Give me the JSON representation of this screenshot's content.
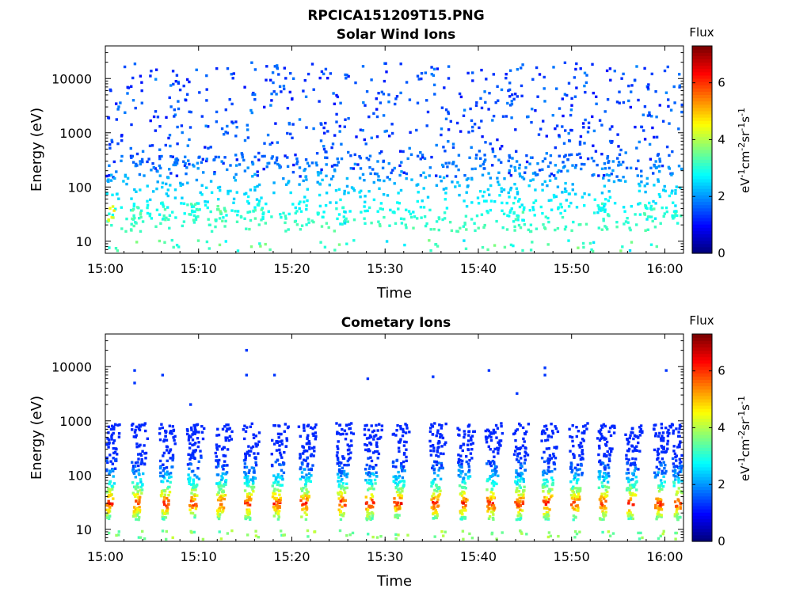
{
  "figure": {
    "title": "RPCICA151209T15.PNG"
  },
  "colors": {
    "colormap": [
      "#00007f",
      "#0000ff",
      "#007fff",
      "#00ffff",
      "#7fff7f",
      "#ffff00",
      "#ff7f00",
      "#ff0000",
      "#7f0000"
    ]
  },
  "chart_data": [
    {
      "type": "heatmap",
      "title": "Solar Wind Ions",
      "xlabel": "Time",
      "ylabel": "Energy (eV)",
      "x_range": [
        "15:00",
        "16:02"
      ],
      "x_ticks": [
        "15:00",
        "15:10",
        "15:20",
        "15:30",
        "15:40",
        "15:50",
        "16:00"
      ],
      "y_scale": "log",
      "y_range": [
        6,
        40000
      ],
      "y_ticks": [
        10,
        100,
        1000,
        10000
      ],
      "y_tick_labels": [
        "10",
        "100",
        "1000",
        "10000"
      ],
      "colorbar": {
        "title": "Flux",
        "label": "eV-1cm-2sr-1s-1",
        "range": [
          0,
          7.3
        ],
        "ticks": [
          "0",
          "2",
          "4",
          "6"
        ]
      },
      "pattern": {
        "scatter_count": 650,
        "scatter_energy_range": [
          150,
          20000
        ],
        "scatter_flux_range": [
          1.0,
          1.9
        ],
        "low_count": 800,
        "low_energy_range": [
          15,
          400
        ],
        "low_flux_range": [
          1.6,
          3.3
        ],
        "bursts": [
          {
            "time": "15:00",
            "energy": 35,
            "flux": 4.8
          },
          {
            "time": "15:03",
            "energy": 30,
            "flux": 3.5
          },
          {
            "time": "15:06",
            "energy": 35,
            "flux": 3.4
          },
          {
            "time": "15:09",
            "energy": 35,
            "flux": 3.6
          },
          {
            "time": "15:12",
            "energy": 35,
            "flux": 3.8
          },
          {
            "time": "15:16",
            "energy": 35,
            "flux": 3.4
          },
          {
            "time": "15:25",
            "energy": 30,
            "flux": 3.2
          },
          {
            "time": "15:44",
            "energy": 35,
            "flux": 3.4
          },
          {
            "time": "15:53",
            "energy": 35,
            "flux": 3.3
          },
          {
            "time": "15:58",
            "energy": 35,
            "flux": 3.4
          },
          {
            "time": "16:01",
            "energy": 35,
            "flux": 3.3
          }
        ]
      }
    },
    {
      "type": "heatmap",
      "title": "Cometary Ions",
      "xlabel": "Time",
      "ylabel": "Energy (eV)",
      "x_range": [
        "15:00",
        "16:02"
      ],
      "x_ticks": [
        "15:00",
        "15:10",
        "15:20",
        "15:30",
        "15:40",
        "15:50",
        "16:00"
      ],
      "y_scale": "log",
      "y_range": [
        6,
        40000
      ],
      "y_ticks": [
        10,
        100,
        1000,
        10000
      ],
      "y_tick_labels": [
        "10",
        "100",
        "1000",
        "10000"
      ],
      "colorbar": {
        "title": "Flux",
        "label": "eV-1cm-2sr-1s-1",
        "range": [
          0,
          7.3
        ],
        "ticks": [
          "0",
          "2",
          "4",
          "6"
        ]
      },
      "pattern": {
        "burst_period_min": 3.1,
        "burst_times": [
          "15:00",
          "15:03",
          "15:06",
          "15:09",
          "15:12",
          "15:15",
          "15:18",
          "15:21",
          "15:25",
          "15:28",
          "15:31",
          "15:35",
          "15:38",
          "15:41",
          "15:44",
          "15:47",
          "15:50",
          "15:53",
          "15:56",
          "15:59",
          "16:01"
        ],
        "burst_energy_range": [
          15,
          900
        ],
        "peak_energy": 30,
        "peak_flux": 6.2,
        "sparse_high_points": [
          {
            "time": "15:03",
            "energy": 8500
          },
          {
            "time": "15:03",
            "energy": 5000
          },
          {
            "time": "15:06",
            "energy": 7000
          },
          {
            "time": "15:09",
            "energy": 2000
          },
          {
            "time": "15:15",
            "energy": 20000
          },
          {
            "time": "15:15",
            "energy": 7000
          },
          {
            "time": "15:18",
            "energy": 7000
          },
          {
            "time": "15:28",
            "energy": 6000
          },
          {
            "time": "15:35",
            "energy": 6500
          },
          {
            "time": "15:41",
            "energy": 8500
          },
          {
            "time": "15:44",
            "energy": 3200
          },
          {
            "time": "15:47",
            "energy": 9500
          },
          {
            "time": "15:47",
            "energy": 7000
          },
          {
            "time": "16:00",
            "energy": 8500
          }
        ]
      }
    }
  ]
}
